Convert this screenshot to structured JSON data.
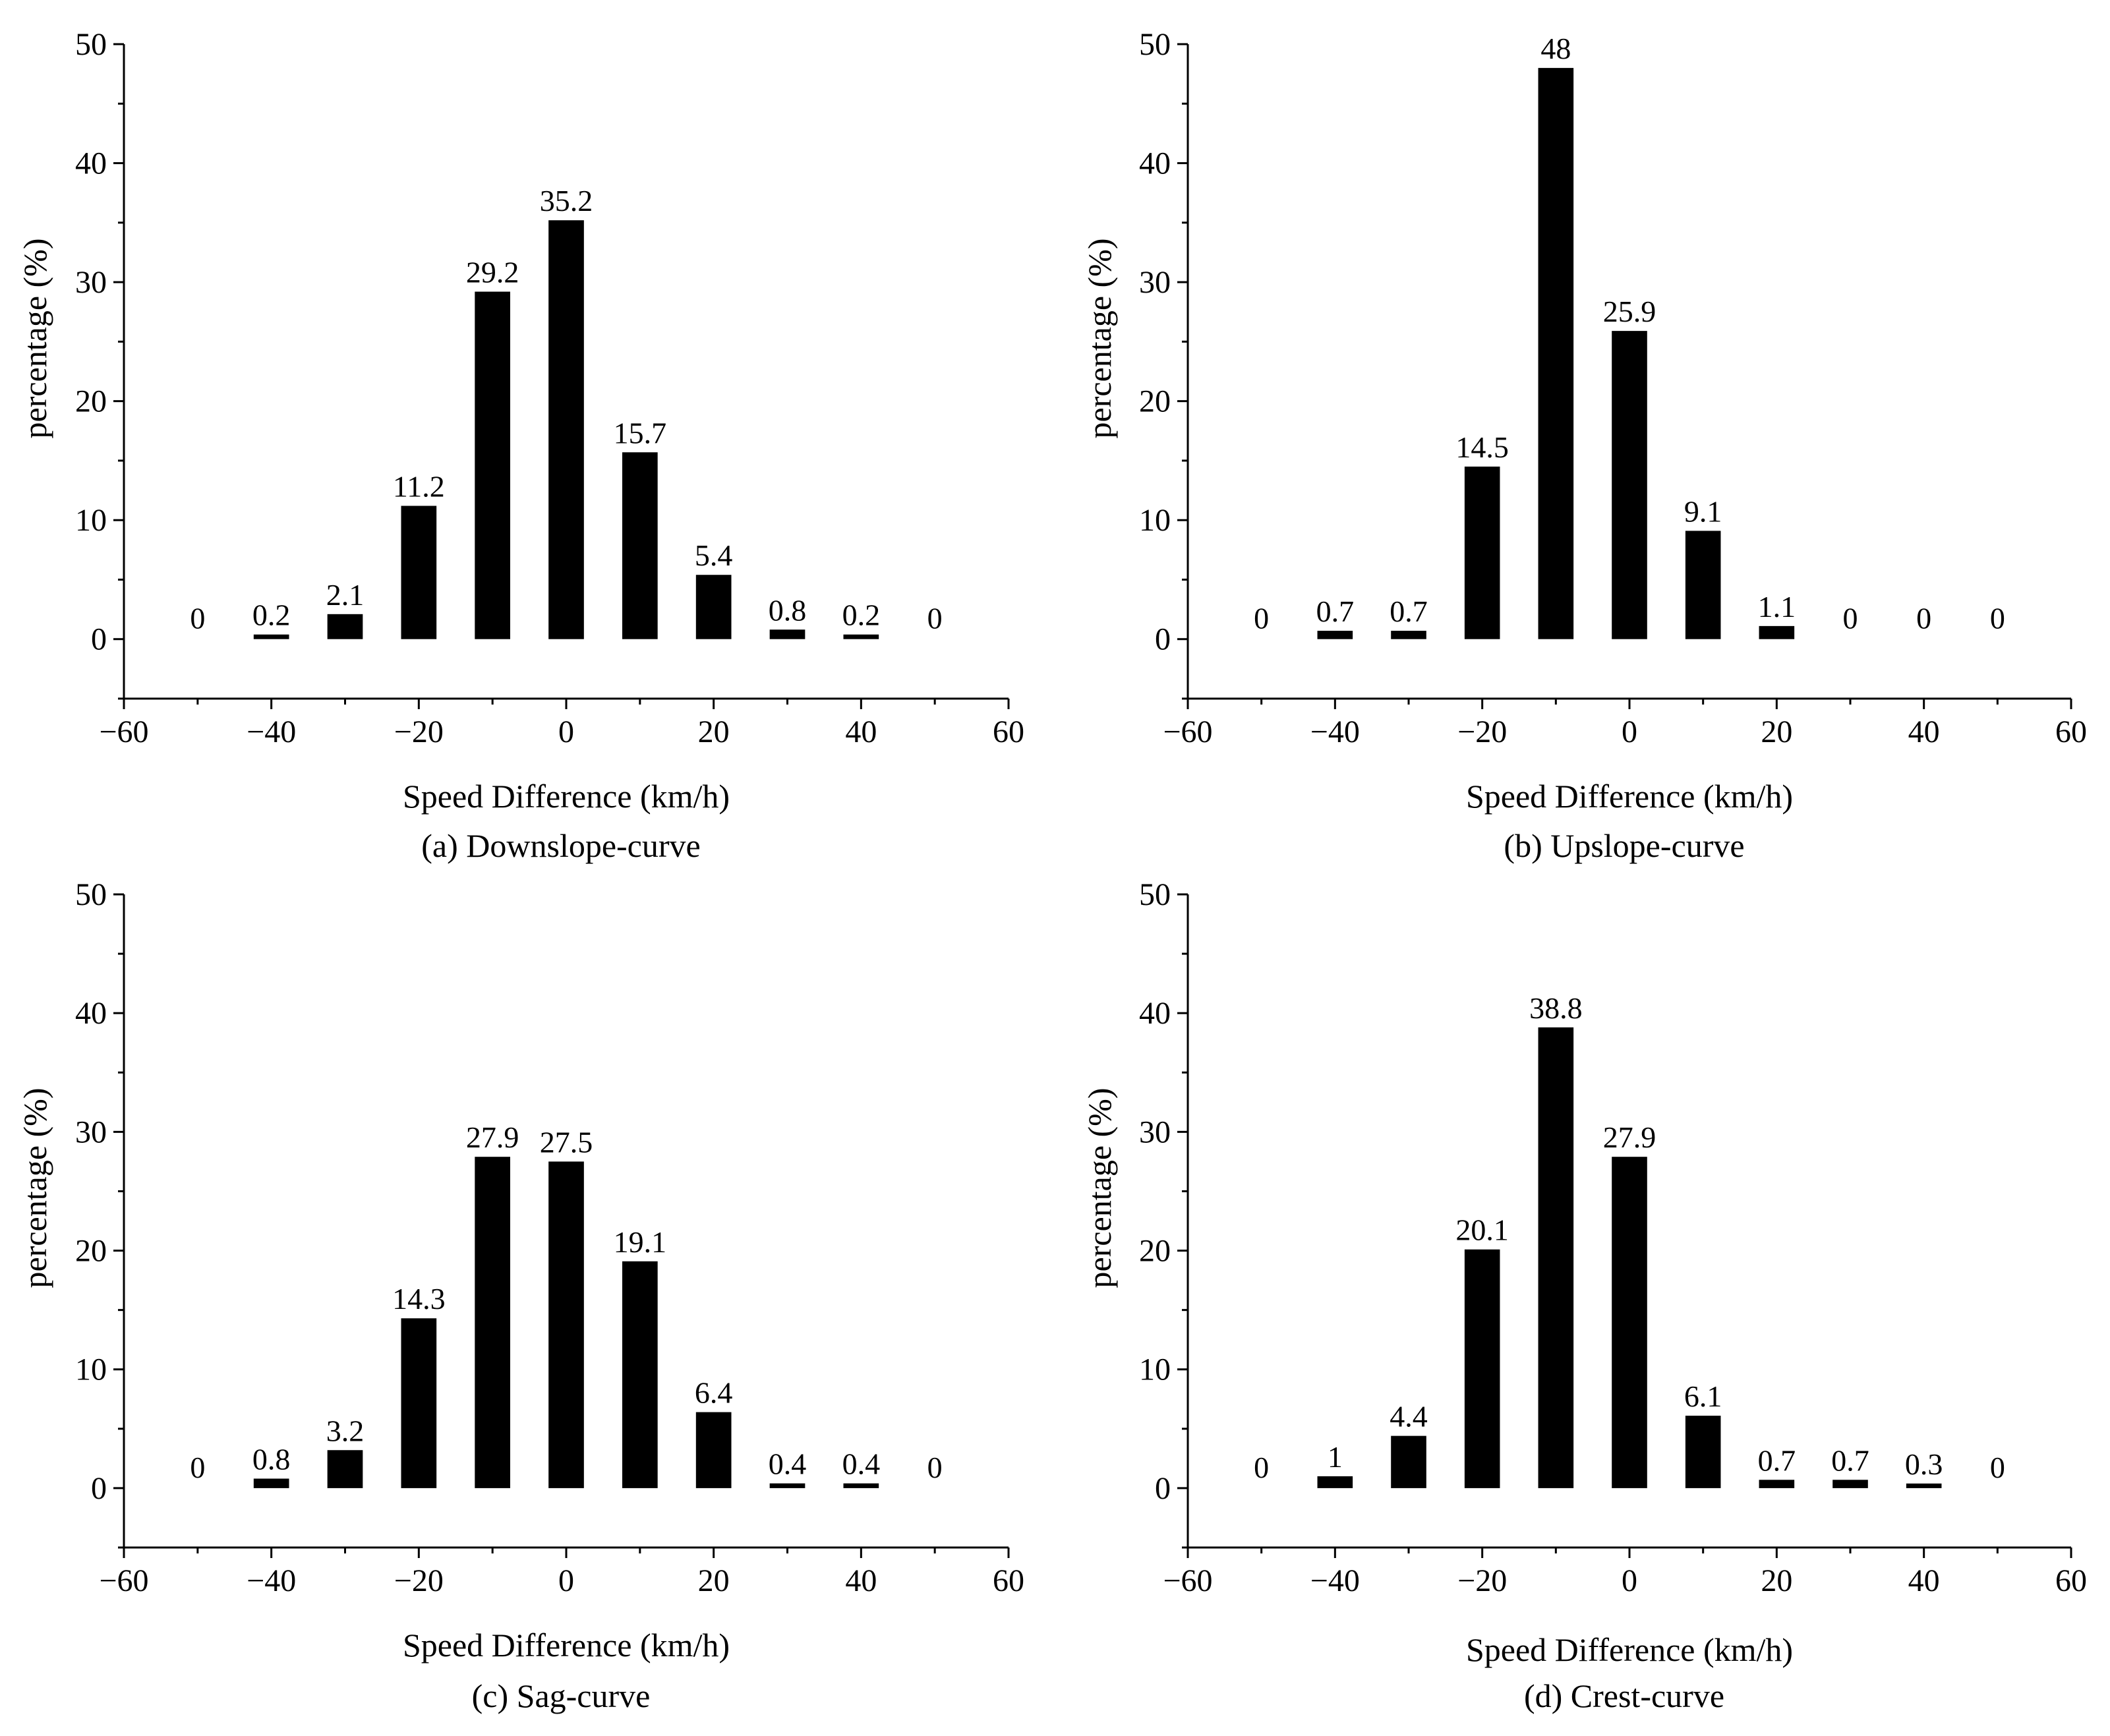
{
  "figure": {
    "panels": [
      {
        "caption": "(a)  Downslope-curve",
        "chart_data": {
          "type": "bar",
          "title": "",
          "xlabel": "Speed Difference (km/h)",
          "ylabel": "percentage (%)",
          "xlim": [
            -60,
            60
          ],
          "ylim": [
            -5,
            50
          ],
          "xticks": [
            -60,
            -40,
            -20,
            0,
            20,
            40,
            60
          ],
          "yticks": [
            0,
            10,
            20,
            30,
            40,
            50
          ],
          "xtick_labels": [
            "−60",
            "−40",
            "−20",
            "0",
            "20",
            "40",
            "60"
          ],
          "ytick_labels": [
            "0",
            "10",
            "20",
            "30",
            "40",
            "50"
          ],
          "x": [
            -50,
            -40,
            -30,
            -20,
            -10,
            0,
            10,
            20,
            30,
            40,
            50
          ],
          "values": [
            0,
            0.2,
            2.1,
            11.2,
            29.2,
            35.2,
            15.7,
            5.4,
            0.8,
            0.2,
            0
          ],
          "labels": [
            "0",
            "0.2",
            "2.1",
            "11.2",
            "29.2",
            "35.2",
            "15.7",
            "5.4",
            "0.8",
            "0.2",
            "0"
          ]
        }
      },
      {
        "caption": "(b) Upslope-curve",
        "chart_data": {
          "type": "bar",
          "title": "",
          "xlabel": "Speed Difference (km/h)",
          "ylabel": "percentage (%)",
          "xlim": [
            -60,
            60
          ],
          "ylim": [
            -5,
            50
          ],
          "xticks": [
            -60,
            -40,
            -20,
            0,
            20,
            40,
            60
          ],
          "yticks": [
            0,
            10,
            20,
            30,
            40,
            50
          ],
          "xtick_labels": [
            "−60",
            "−40",
            "−20",
            "0",
            "20",
            "40",
            "60"
          ],
          "ytick_labels": [
            "0",
            "10",
            "20",
            "30",
            "40",
            "50"
          ],
          "x": [
            -50,
            -40,
            -30,
            -20,
            -10,
            0,
            10,
            20,
            30,
            40,
            50
          ],
          "values": [
            0,
            0.7,
            0.7,
            14.5,
            48,
            25.9,
            9.1,
            1.1,
            0,
            0,
            0
          ],
          "labels": [
            "0",
            "0.7",
            "0.7",
            "14.5",
            "48",
            "25.9",
            "9.1",
            "1.1",
            "0",
            "0",
            "0"
          ]
        }
      },
      {
        "caption": "(c) Sag-curve",
        "chart_data": {
          "type": "bar",
          "title": "",
          "xlabel": "Speed Difference (km/h)",
          "ylabel": "percentage (%)",
          "xlim": [
            -60,
            60
          ],
          "ylim": [
            -5,
            50
          ],
          "xticks": [
            -60,
            -40,
            -20,
            0,
            20,
            40,
            60
          ],
          "yticks": [
            0,
            10,
            20,
            30,
            40,
            50
          ],
          "xtick_labels": [
            "−60",
            "−40",
            "−20",
            "0",
            "20",
            "40",
            "60"
          ],
          "ytick_labels": [
            "0",
            "10",
            "20",
            "30",
            "40",
            "50"
          ],
          "x": [
            -50,
            -40,
            -30,
            -20,
            -10,
            0,
            10,
            20,
            30,
            40,
            50
          ],
          "values": [
            0,
            0.8,
            3.2,
            14.3,
            27.9,
            27.5,
            19.1,
            6.4,
            0.4,
            0.4,
            0
          ],
          "labels": [
            "0",
            "0.8",
            "3.2",
            "14.3",
            "27.9",
            "27.5",
            "19.1",
            "6.4",
            "0.4",
            "0.4",
            "0"
          ]
        }
      },
      {
        "caption": "(d)  Crest-curve",
        "chart_data": {
          "type": "bar",
          "title": "",
          "xlabel": "Speed Difference (km/h)",
          "ylabel": "percentage (%)",
          "xlim": [
            -60,
            60
          ],
          "ylim": [
            -5,
            50
          ],
          "xticks": [
            -60,
            -40,
            -20,
            0,
            20,
            40,
            60
          ],
          "yticks": [
            0,
            10,
            20,
            30,
            40,
            50
          ],
          "xtick_labels": [
            "−60",
            "−40",
            "−20",
            "0",
            "20",
            "40",
            "60"
          ],
          "ytick_labels": [
            "0",
            "10",
            "20",
            "30",
            "40",
            "50"
          ],
          "x": [
            -50,
            -40,
            -30,
            -20,
            -10,
            0,
            10,
            20,
            30,
            40,
            50
          ],
          "values": [
            0,
            1,
            4.4,
            20.1,
            38.8,
            27.9,
            6.1,
            0.7,
            0.7,
            0.3,
            0
          ],
          "labels": [
            "0",
            "1",
            "4.4",
            "20.1",
            "38.8",
            "27.9",
            "6.1",
            "0.7",
            "0.7",
            "0.3",
            "0"
          ]
        }
      }
    ]
  },
  "chart_data": [
    {
      "type": "bar",
      "name": "(a)  Downslope-curve",
      "x": [
        -50,
        -40,
        -30,
        -20,
        -10,
        0,
        10,
        20,
        30,
        40,
        50
      ],
      "values": [
        0,
        0.2,
        2.1,
        11.2,
        29.2,
        35.2,
        15.7,
        5.4,
        0.8,
        0.2,
        0
      ],
      "xlabel": "Speed Difference (km/h)",
      "ylabel": "percentage (%)",
      "xlim": [
        -60,
        60
      ],
      "ylim": [
        -5,
        50
      ]
    },
    {
      "type": "bar",
      "name": "(b) Upslope-curve",
      "x": [
        -50,
        -40,
        -30,
        -20,
        -10,
        0,
        10,
        20,
        30,
        40,
        50
      ],
      "values": [
        0,
        0.7,
        0.7,
        14.5,
        48,
        25.9,
        9.1,
        1.1,
        0,
        0,
        0
      ],
      "xlabel": "Speed Difference (km/h)",
      "ylabel": "percentage (%)",
      "xlim": [
        -60,
        60
      ],
      "ylim": [
        -5,
        50
      ]
    },
    {
      "type": "bar",
      "name": "(c) Sag-curve",
      "x": [
        -50,
        -40,
        -30,
        -20,
        -10,
        0,
        10,
        20,
        30,
        40,
        50
      ],
      "values": [
        0,
        0.8,
        3.2,
        14.3,
        27.9,
        27.5,
        19.1,
        6.4,
        0.4,
        0.4,
        0
      ],
      "xlabel": "Speed Difference (km/h)",
      "ylabel": "percentage (%)",
      "xlim": [
        -60,
        60
      ],
      "ylim": [
        -5,
        50
      ]
    },
    {
      "type": "bar",
      "name": "(d)  Crest-curve",
      "x": [
        -50,
        -40,
        -30,
        -20,
        -10,
        0,
        10,
        20,
        30,
        40,
        50
      ],
      "values": [
        0,
        1,
        4.4,
        20.1,
        38.8,
        27.9,
        6.1,
        0.7,
        0.7,
        0.3,
        0
      ],
      "xlabel": "Speed Difference (km/h)",
      "ylabel": "percentage (%)",
      "xlim": [
        -60,
        60
      ],
      "ylim": [
        -5,
        50
      ]
    }
  ]
}
